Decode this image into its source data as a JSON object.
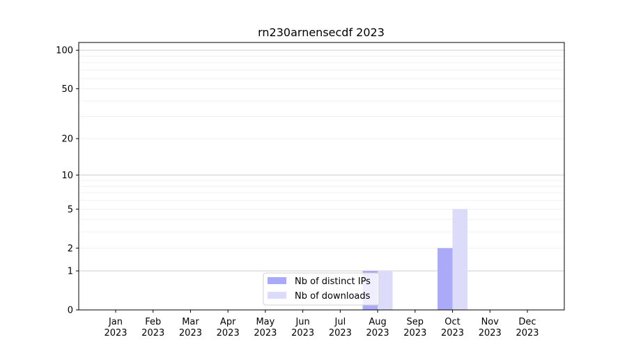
{
  "chart_data": {
    "type": "bar",
    "title": "rn230arnensecdf 2023",
    "xlabel": "",
    "ylabel": "",
    "y_scale": "log(1+y)",
    "ylim": [
      0,
      115
    ],
    "yticks": [
      0,
      1,
      2,
      5,
      10,
      20,
      50,
      100
    ],
    "ytick_labels": [
      "0",
      "1",
      "2",
      "5",
      "10",
      "20",
      "50",
      "100"
    ],
    "grid": true,
    "legend_position": "lower-center",
    "categories": [
      "Jan\n2023",
      "Feb\n2023",
      "Mar\n2023",
      "Apr\n2023",
      "May\n2023",
      "Jun\n2023",
      "Jul\n2023",
      "Aug\n2023",
      "Sep\n2023",
      "Oct\n2023",
      "Nov\n2023",
      "Dec\n2023"
    ],
    "series": [
      {
        "name": "Nb of distinct IPs",
        "color": "#aaaaf8",
        "values": [
          0,
          0,
          0,
          0,
          0,
          0,
          0,
          1,
          0,
          2,
          0,
          0
        ]
      },
      {
        "name": "Nb of downloads",
        "color": "#dcdcfa",
        "values": [
          0,
          0,
          0,
          0,
          0,
          0,
          0,
          1,
          0,
          5,
          0,
          0
        ]
      }
    ]
  }
}
